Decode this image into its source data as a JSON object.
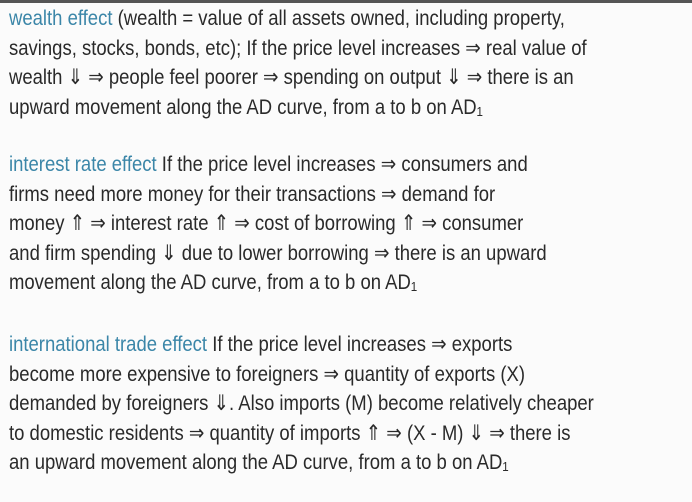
{
  "paragraphs": [
    {
      "heading": "wealth effect",
      "lines": [
        " (wealth = value of all assets owned, including property,",
        "savings, stocks, bonds, etc); If the price level increases ⇒ real value of",
        "wealth ⇓ ⇒ people feel poorer ⇒ spending on output ⇓ ⇒  there is an",
        "upward movement along the AD curve, from a to b on AD₁"
      ]
    },
    {
      "heading": "interest rate effect",
      "lines": [
        " If the price level increases ⇒ consumers and",
        "firms need more money for their transactions ⇒ demand for",
        "money ⇑ ⇒ interest rate ⇑ ⇒ cost of borrowing ⇑ ⇒ consumer",
        "and firm spending ⇓ due to lower borrowing ⇒  there is an upward",
        "movement along the AD curve, from a to b on AD₁"
      ]
    },
    {
      "heading": "international trade effect",
      "lines": [
        " If the price level increases ⇒ exports",
        "become more expensive to foreigners ⇒ quantity of exports (X)",
        "demanded by foreigners ⇓. Also imports (M) become relatively cheaper",
        "to domestic residents ⇒ quantity of imports ⇑ ⇒ (X - M) ⇓ ⇒ there is",
        "an upward movement along the AD curve, from a to b on AD₁"
      ]
    }
  ]
}
